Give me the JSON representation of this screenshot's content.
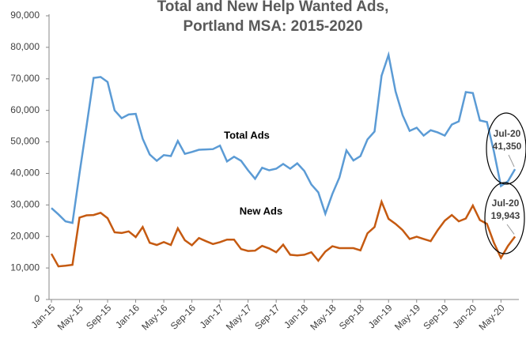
{
  "chart_data": {
    "type": "line",
    "title": [
      "Total and New Help Wanted Ads,",
      "Portland MSA: 2015-2020"
    ],
    "categories": [
      "Jan-15",
      null,
      null,
      null,
      "May-15",
      null,
      null,
      null,
      "Sep-15",
      null,
      null,
      null,
      "Jan-16",
      null,
      null,
      null,
      "May-16",
      null,
      null,
      null,
      "Sep-16",
      null,
      null,
      null,
      "Jan-17",
      null,
      null,
      null,
      "May-17",
      null,
      null,
      null,
      "Sep-17",
      null,
      null,
      null,
      "Jan-18",
      null,
      null,
      null,
      "May-18",
      null,
      null,
      null,
      "Sep-18",
      null,
      null,
      null,
      "Jan-19",
      null,
      null,
      null,
      "May-19",
      null,
      null,
      null,
      "Sep-19",
      null,
      null,
      null,
      "Jan-20",
      null,
      null,
      null,
      "May-20",
      null,
      null
    ],
    "series": [
      {
        "name": "Total Ads",
        "color": "#5b9bd5",
        "values": [
          29000,
          27000,
          24800,
          24300,
          40000,
          55000,
          70300,
          70600,
          69000,
          60000,
          57500,
          58700,
          58900,
          51000,
          46000,
          44000,
          45800,
          45500,
          50300,
          46200,
          46800,
          47500,
          47600,
          47700,
          48800,
          43800,
          45300,
          44000,
          41000,
          38300,
          41800,
          41000,
          41500,
          43000,
          41500,
          43200,
          40800,
          36500,
          34000,
          27200,
          33500,
          38700,
          47300,
          44100,
          45500,
          50800,
          53300,
          71000,
          77600,
          66000,
          58500,
          53500,
          54500,
          52000,
          53700,
          53000,
          52000,
          55500,
          56500,
          65800,
          65500,
          56800,
          56300,
          47000,
          36000,
          37500,
          41350
        ],
        "value_labels": [
          null,
          null,
          null,
          null,
          null,
          null,
          null,
          null,
          null,
          null,
          null,
          null,
          null,
          null,
          null,
          null,
          null,
          null,
          null,
          null,
          null,
          null,
          null,
          null,
          null,
          null,
          null,
          null,
          null,
          null,
          null,
          null,
          null,
          null,
          null,
          null,
          null,
          null,
          null,
          null,
          null,
          null,
          null,
          null,
          null,
          null,
          null,
          null,
          null,
          null,
          null,
          null,
          null,
          null,
          null,
          null,
          null,
          null,
          null,
          null,
          null,
          null,
          null,
          null,
          null,
          null,
          "41,350"
        ]
      },
      {
        "name": "New Ads",
        "color": "#c55a11",
        "values": [
          14500,
          10500,
          10700,
          11000,
          26000,
          26700,
          26800,
          27500,
          25800,
          21300,
          21100,
          21600,
          19800,
          23000,
          18000,
          17300,
          18200,
          17300,
          22600,
          18800,
          17200,
          19500,
          18500,
          17600,
          18200,
          19000,
          19000,
          16000,
          15400,
          15500,
          17000,
          16200,
          15000,
          17400,
          14200,
          14000,
          14200,
          15000,
          12300,
          15200,
          16900,
          16300,
          16300,
          16300,
          15600,
          21000,
          23000,
          31000,
          25600,
          24000,
          22000,
          19200,
          19900,
          19200,
          18500,
          22000,
          25000,
          26800,
          24800,
          25700,
          29800,
          25200,
          24000,
          18000,
          13200,
          17000,
          19943
        ],
        "value_labels": [
          null,
          null,
          null,
          null,
          null,
          null,
          null,
          null,
          null,
          null,
          null,
          null,
          null,
          null,
          null,
          null,
          null,
          null,
          null,
          null,
          null,
          null,
          null,
          null,
          null,
          null,
          null,
          null,
          null,
          null,
          null,
          null,
          null,
          null,
          null,
          null,
          null,
          null,
          null,
          null,
          null,
          null,
          null,
          null,
          null,
          null,
          null,
          null,
          null,
          null,
          null,
          null,
          null,
          null,
          null,
          null,
          null,
          null,
          null,
          null,
          null,
          null,
          null,
          null,
          null,
          null,
          "19,943"
        ]
      }
    ],
    "annotations": [
      "Jul-20",
      "Jul-20"
    ],
    "ylim": [
      0,
      90000
    ],
    "yticks": [
      0,
      {
        "value": 10000,
        "label": "10,000"
      },
      {
        "value": 20000,
        "label": "20,000"
      },
      {
        "value": 30000,
        "label": "30,000"
      },
      {
        "value": 40000,
        "label": "40,000"
      },
      {
        "value": 50000,
        "label": "50,000"
      },
      {
        "value": 60000,
        "label": "60,000"
      },
      {
        "value": 70000,
        "label": "70,000"
      },
      {
        "value": 80000,
        "label": "80,000"
      },
      {
        "value": 90000,
        "label": "90,000"
      }
    ],
    "grid": false
  }
}
